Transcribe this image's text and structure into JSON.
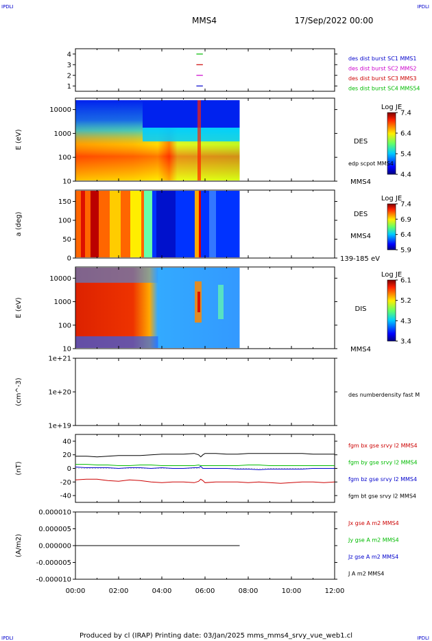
{
  "header": {
    "corner_tl": "IPDLI",
    "corner_tr": "IPDLI",
    "corner_bl": "IPDLI",
    "corner_br": "IPDLI",
    "title": "MMS4",
    "date": "17/Sep/2022 00:00"
  },
  "footer": {
    "text": "Produced by cl (IRAP)   Printing date: 03/Jan/2025   mms_mms4_srvy_vue_web1.cl"
  },
  "colors": {
    "blue": "#0000cc",
    "magenta": "#cc00cc",
    "red": "#cc0000",
    "green": "#00bb00",
    "black": "#000000"
  },
  "chart_data": [
    {
      "type": "line",
      "panel": "burst",
      "ylim": [
        0.5,
        4.5
      ],
      "yticks": [
        "1",
        "2",
        "3",
        "4"
      ],
      "xlim_hours": [
        0,
        12
      ],
      "series": [
        {
          "name": "des dist burst SC1 MMS1",
          "color": "#0000cc",
          "y": 1,
          "x_range_hours": [
            5.6,
            5.9
          ]
        },
        {
          "name": "des dist burst SC2 MMS2",
          "color": "#cc00cc",
          "y": 2,
          "x_range_hours": [
            5.6,
            5.9
          ]
        },
        {
          "name": "des dist burst SC3 MMS3",
          "color": "#cc0000",
          "y": 3,
          "x_range_hours": [
            5.6,
            5.9
          ]
        },
        {
          "name": "des dist burst SC4 MMS54",
          "color": "#00bb00",
          "y": 4,
          "x_range_hours": [
            5.6,
            5.9
          ]
        }
      ]
    },
    {
      "type": "heatmap",
      "panel": "des-energy",
      "ylabel": "E (eV)",
      "ylog": true,
      "ylim": [
        10,
        30000
      ],
      "yticks": [
        "10",
        "100",
        "1000",
        "10000"
      ],
      "data_end_hours": 7.6,
      "label_right": "DES",
      "label_right_sub": "edp scpot MMS4",
      "label_bottom": "MMS4",
      "colorbar": {
        "title": "Log JE",
        "min": 4.4,
        "max": 7.4,
        "ticks": [
          "7.4",
          "6.4",
          "5.4",
          "4.4"
        ]
      }
    },
    {
      "type": "heatmap",
      "panel": "des-pitch",
      "ylabel": "a (deg)",
      "ylim": [
        0,
        180
      ],
      "yticks": [
        "0",
        "50",
        "100",
        "150"
      ],
      "data_end_hours": 7.6,
      "label_right": "DES",
      "label_right_sub": "MMS4",
      "label_bottom": "139-185 eV",
      "colorbar": {
        "title": "Log JE",
        "min": 5.9,
        "max": 7.4,
        "ticks": [
          "7.4",
          "6.9",
          "6.4",
          "5.9"
        ]
      }
    },
    {
      "type": "heatmap",
      "panel": "dis-energy",
      "ylabel": "E (eV)",
      "ylog": true,
      "ylim": [
        10,
        30000
      ],
      "yticks": [
        "10",
        "100",
        "1000",
        "10000"
      ],
      "data_end_hours": 7.6,
      "label_right": "DIS",
      "label_bottom": "MMS4",
      "colorbar": {
        "title": "Log JE",
        "min": 3.4,
        "max": 6.1,
        "ticks": [
          "6.1",
          "5.2",
          "4.3",
          "3.4"
        ]
      }
    },
    {
      "type": "line",
      "panel": "density",
      "ylabel": "(cm^-3)",
      "ylog": true,
      "yticks": [
        "1e+19",
        "1e+20",
        "1e+21"
      ],
      "series": [
        {
          "name": "des numberdensity fast M",
          "values": []
        }
      ]
    },
    {
      "type": "line",
      "panel": "fgm",
      "ylabel": "(nT)",
      "ylim": [
        -50,
        50
      ],
      "yticks": [
        "-40",
        "-20",
        "0",
        "20",
        "40"
      ],
      "x_hours": [
        0,
        0.5,
        1,
        1.5,
        2,
        2.5,
        3,
        3.5,
        4,
        4.5,
        5,
        5.5,
        5.7,
        5.8,
        5.9,
        6,
        6.5,
        7,
        7.5,
        8,
        8.5,
        9,
        9.5,
        10,
        10.5,
        11,
        11.5,
        12
      ],
      "series": [
        {
          "name": "fgm bx gse srvy l2 MMS4",
          "color": "#cc0000",
          "values": [
            -17,
            -16,
            -16,
            -18,
            -19,
            -17,
            -18,
            -20,
            -21,
            -20,
            -20,
            -21,
            -19,
            -16,
            -18,
            -21,
            -20,
            -20,
            -20,
            -21,
            -20,
            -21,
            -22,
            -21,
            -20,
            -20,
            -21,
            -20
          ]
        },
        {
          "name": "fgm by gse srvy l2 MMS4",
          "color": "#00bb00",
          "values": [
            6,
            6,
            5,
            5,
            4,
            4,
            5,
            5,
            4,
            4,
            4,
            4,
            5,
            4,
            4,
            4,
            4,
            4,
            4,
            5,
            5,
            4,
            4,
            4,
            4,
            4,
            4,
            4
          ]
        },
        {
          "name": "fgm bz gse srvy l2 MMS4",
          "color": "#0000cc",
          "values": [
            2,
            1,
            1,
            1,
            0,
            1,
            1,
            0,
            1,
            0,
            0,
            1,
            1,
            3,
            0,
            0,
            0,
            0,
            -1,
            -1,
            -2,
            -1,
            -1,
            -1,
            -1,
            0,
            0,
            0
          ]
        },
        {
          "name": "fgm bt gse srvy l2 MMS4",
          "color": "#000000",
          "values": [
            18,
            18,
            17,
            18,
            19,
            19,
            19,
            20,
            21,
            21,
            21,
            22,
            20,
            17,
            20,
            22,
            22,
            21,
            21,
            22,
            22,
            22,
            22,
            22,
            22,
            21,
            21,
            21
          ]
        }
      ]
    },
    {
      "type": "line",
      "panel": "current",
      "ylabel": "(A/m2)",
      "ylim": [
        -1e-05,
        1e-05
      ],
      "yticks": [
        "-0.000010",
        "-0.000005",
        "0.000000",
        "0.000005",
        "0.000010"
      ],
      "xticks": [
        "00:00",
        "02:00",
        "04:00",
        "06:00",
        "08:00",
        "10:00",
        "12:00"
      ],
      "x_hours": [
        0,
        7.6
      ],
      "series": [
        {
          "name": "Jx gse A m2 MMS4",
          "color": "#cc0000",
          "values": [
            0,
            0
          ]
        },
        {
          "name": "Jy gse A m2 MMS4",
          "color": "#00bb00",
          "values": [
            0,
            0
          ]
        },
        {
          "name": "Jz gse A m2 MMS4",
          "color": "#0000cc",
          "values": [
            0,
            0
          ]
        },
        {
          "name": "J A m2 MMS4",
          "color": "#000000",
          "values": [
            0,
            0
          ]
        }
      ]
    }
  ]
}
